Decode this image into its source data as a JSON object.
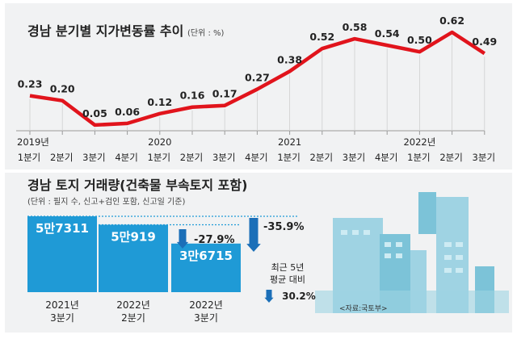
{
  "colors": {
    "panel": "#f1f2f3",
    "line": "#e1141c",
    "bar": "#1f9ad6",
    "arrow": "#1b6fb8",
    "dotted": "#1f9ad6",
    "building": "#9fd3e3",
    "building_dark": "#7cc3d8",
    "window": "#cdebf3",
    "text": "#222222"
  },
  "chart_data": [
    {
      "type": "line",
      "title": "경남 분기별 지가변동률 추이",
      "unit": "(단위 : %)",
      "x": [
        "2019-Q1",
        "2019-Q2",
        "2019-Q3",
        "2019-Q4",
        "2020-Q1",
        "2020-Q2",
        "2020-Q3",
        "2020-Q4",
        "2021-Q1",
        "2021-Q2",
        "2021-Q3",
        "2021-Q4",
        "2022-Q1",
        "2022-Q2",
        "2022-Q3"
      ],
      "quarter_labels": [
        "1분기",
        "2분기",
        "3분기",
        "4분기",
        "1분기",
        "2분기",
        "3분기",
        "4분기",
        "1분기",
        "2분기",
        "3분기",
        "4분기",
        "1분기",
        "2분기",
        "3분기"
      ],
      "year_labels": [
        {
          "label": "2019년",
          "index": 0
        },
        {
          "label": "2020",
          "index": 4
        },
        {
          "label": "2021",
          "index": 8
        },
        {
          "label": "2022년",
          "index": 12
        }
      ],
      "series": [
        {
          "values": [
            0.23,
            0.2,
            0.05,
            0.06,
            0.12,
            0.16,
            0.17,
            0.27,
            0.38,
            0.52,
            0.58,
            0.54,
            0.5,
            0.62,
            0.49
          ],
          "labels": [
            "0.23",
            "0.20",
            "0.05",
            "0.06",
            "0.12",
            "0.16",
            "0.17",
            "0.27",
            "0.38",
            "0.52",
            "0.58",
            "0.54",
            "0.50",
            "0.62",
            "0.49"
          ]
        }
      ],
      "grid": false
    },
    {
      "type": "bar",
      "title": "경남 토지 거래량(건축물 부속토지 포함)",
      "note": "(단위 : 필지 수, 신고+검인 포함, 신고일 기준)",
      "categories": [
        {
          "year": "2021년",
          "quarter": "3분기"
        },
        {
          "year": "2022년",
          "quarter": "2분기"
        },
        {
          "year": "2022년",
          "quarter": "3분기"
        }
      ],
      "values": [
        57311,
        50919,
        36715
      ],
      "value_labels": [
        "5만7311",
        "5만919",
        "3만6715"
      ],
      "changes": [
        "-27.9%",
        "-35.9%"
      ],
      "average_label_line1": "최근 5년",
      "average_label_line2": "평균 대비",
      "average_change": "30.2%"
    }
  ],
  "source": "<자료:국토부>"
}
